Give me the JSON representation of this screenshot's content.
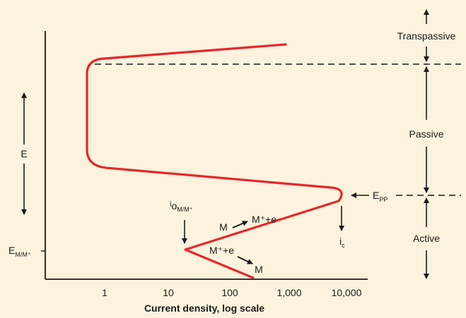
{
  "diagram": {
    "x_axis": {
      "label": "Current density, log scale",
      "ticks": [
        "1",
        "10",
        "100",
        "1,000",
        "10,000"
      ]
    },
    "y_axis": {
      "label": "E",
      "equilibrium": {
        "main": "E",
        "sub": "M/M⁺"
      }
    },
    "regions": [
      {
        "name": "Transpassive"
      },
      {
        "name": "Passive"
      },
      {
        "name": "Active"
      }
    ],
    "epp": {
      "main": "E",
      "sub": "PP"
    },
    "exchange_current": {
      "main": "i",
      "sub": "o",
      "sub2": "M/M⁺"
    },
    "critical_current": {
      "main": "i",
      "sub": "c"
    },
    "reactions": {
      "anodic": {
        "left": "M",
        "right": "M⁺+e"
      },
      "cathodic": {
        "left": "M⁺+e",
        "right": "M"
      }
    },
    "colors": {
      "curve": "#e8262a",
      "background": "#fbf3dd",
      "ink": "#1a1a1a"
    }
  }
}
